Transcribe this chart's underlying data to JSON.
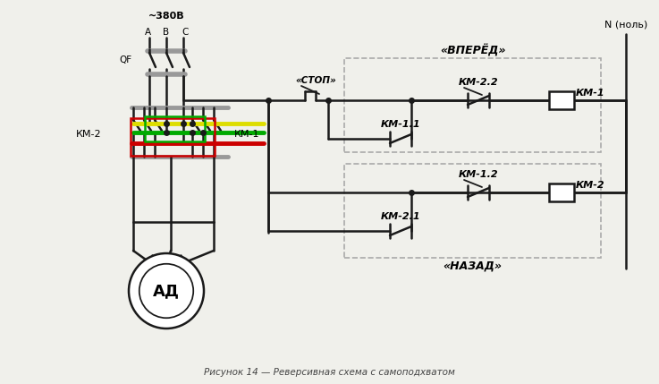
{
  "title": "Рисунок 14 — Реверсивная схема с самоподхватом",
  "bg_color": "#f0f0eb",
  "line_color": "#1a1a1a",
  "voltage_label": "~380В",
  "phase_A": "A",
  "phase_B": "B",
  "phase_C": "C",
  "qf_label": "QF",
  "stop_label": "«СТОП»",
  "km1_label": "КМ-1",
  "km2_label": "КМ-2",
  "km11_label": "КМ-1.1",
  "km22_label": "КМ-2.2",
  "km21_label": "КМ-2.1",
  "km12_label": "КМ-1.2",
  "ad_label": "АД",
  "n_label": "N (ноль)",
  "vpered_label": "«ВПЕРЁД»",
  "nazad_label": "«НАЗАД»",
  "red_color": "#cc0000",
  "green_color": "#00aa00",
  "yellow_color": "#dddd00",
  "gray_color": "#999999",
  "dash_color": "#aaaaaa",
  "lw_main": 1.8,
  "lw_thin": 1.3,
  "lw_colored": 3.5
}
